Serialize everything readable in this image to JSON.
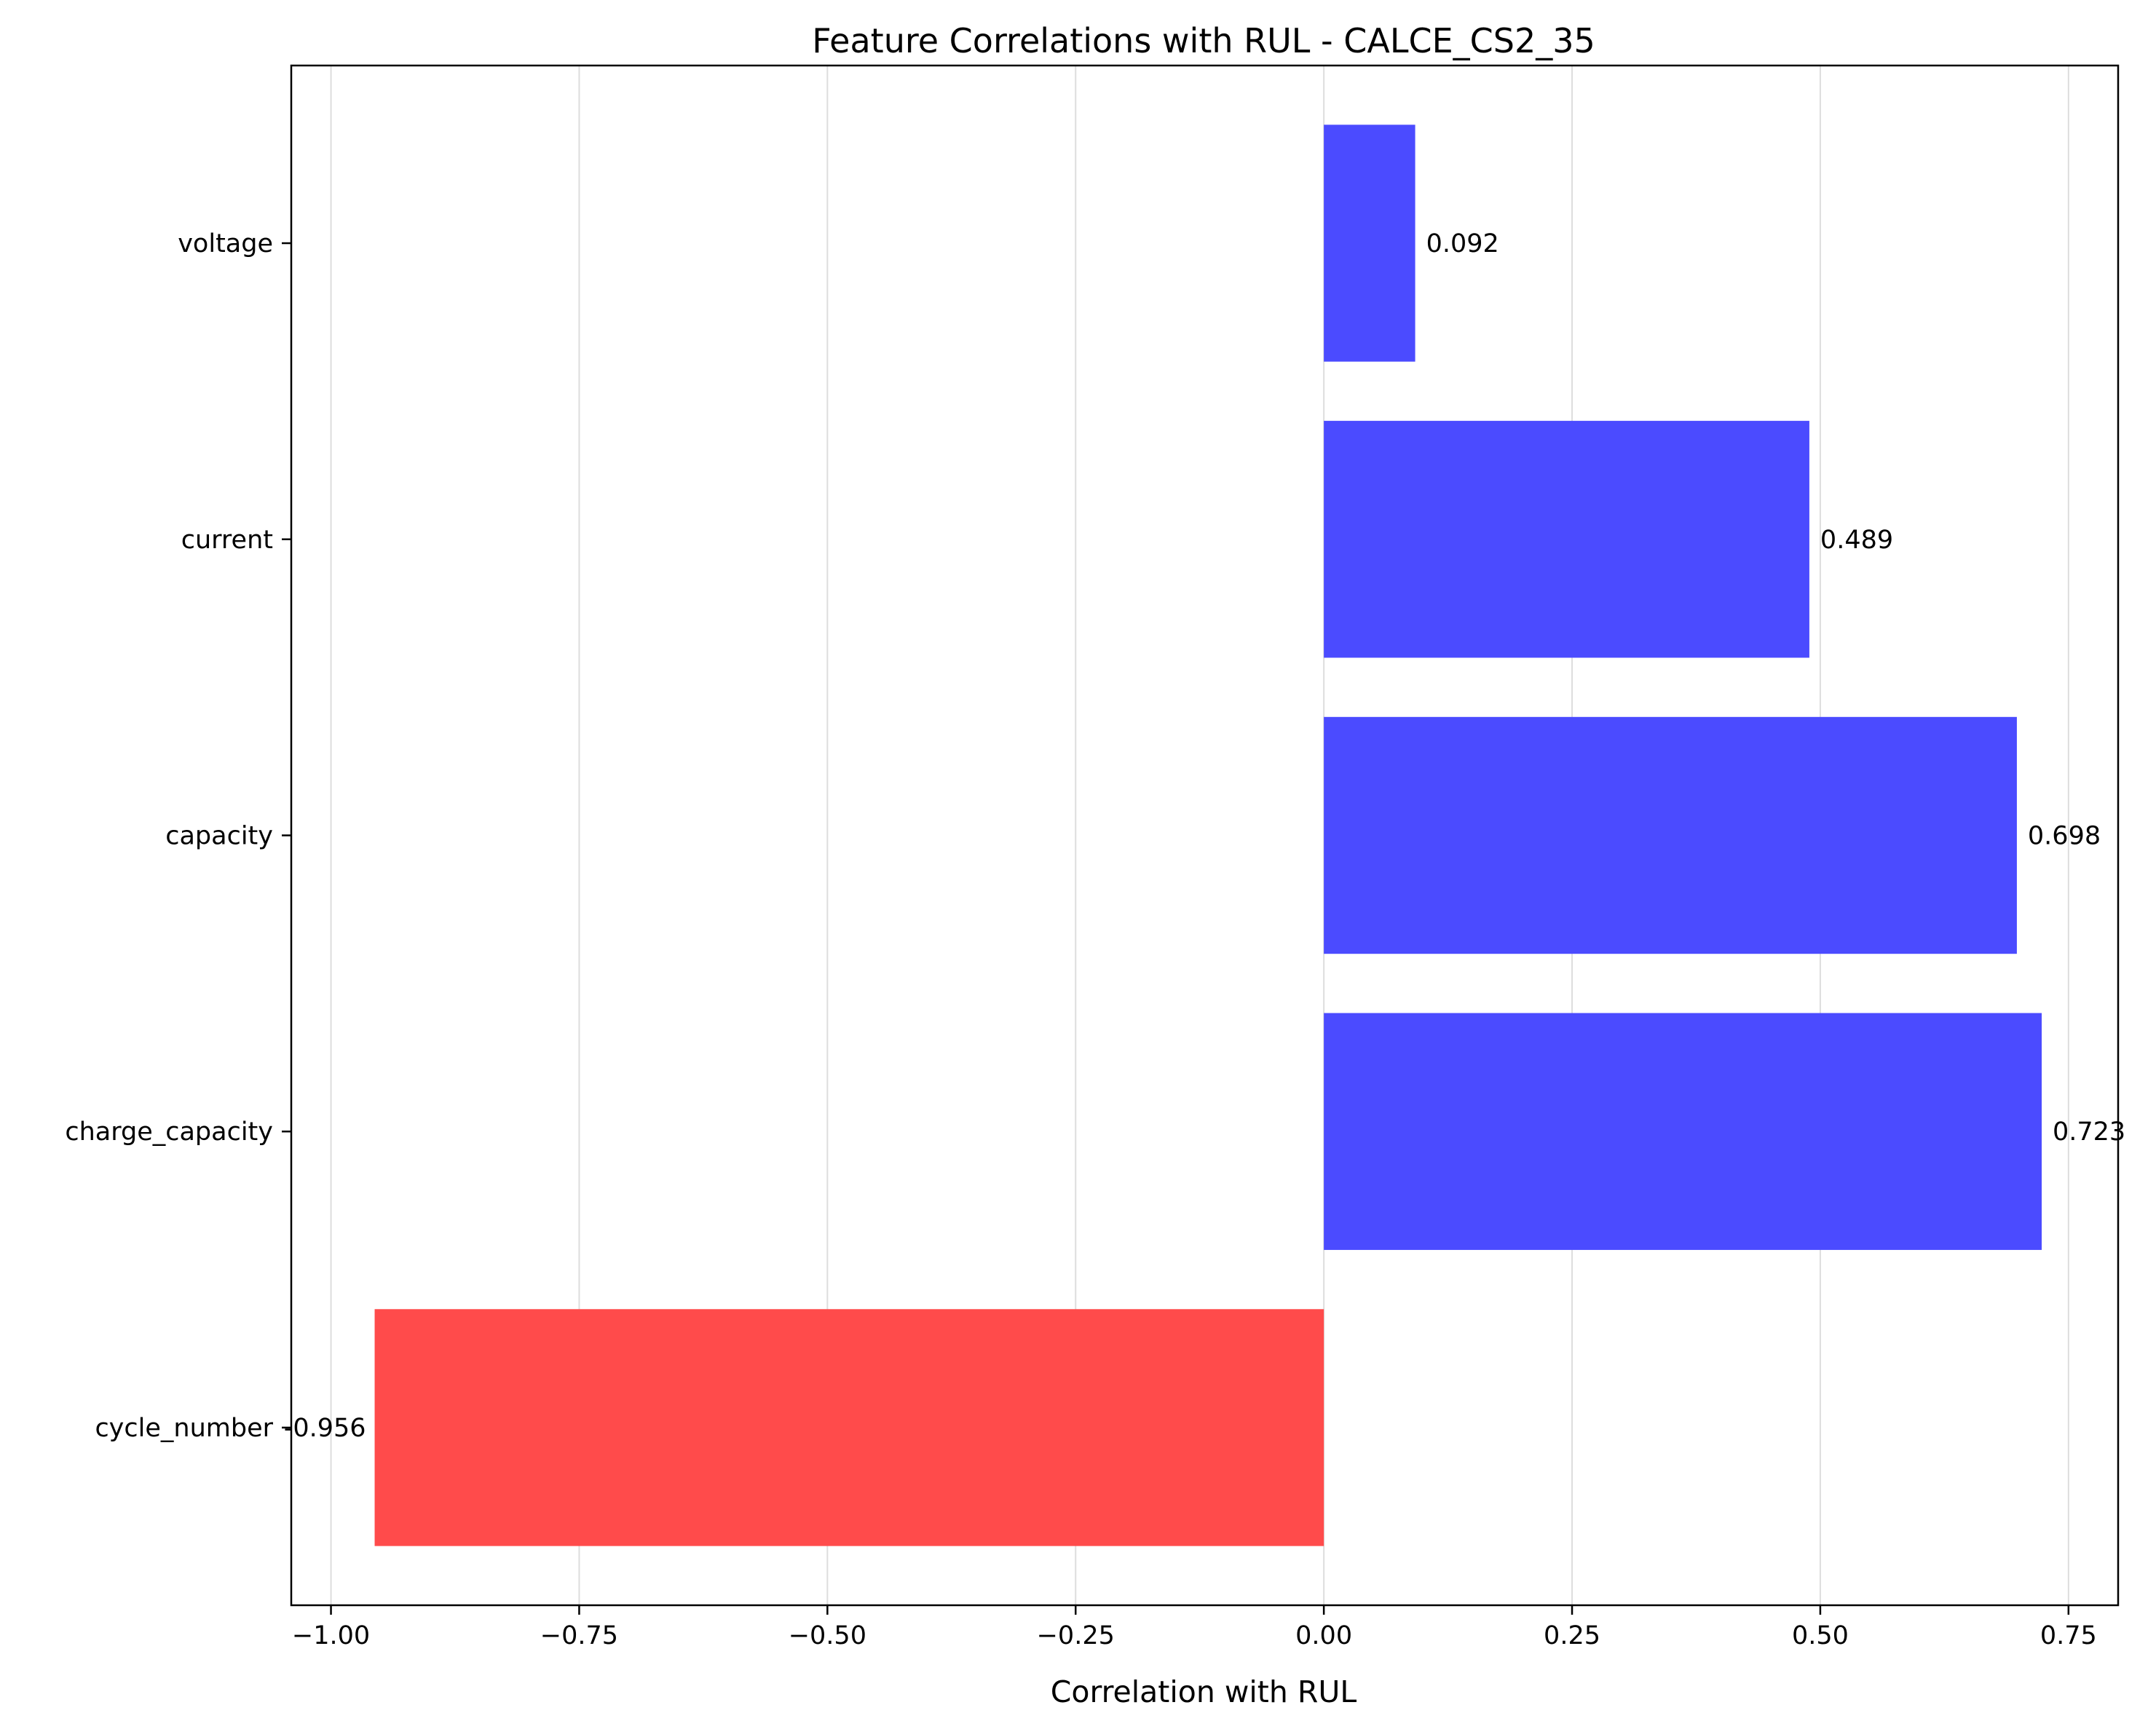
{
  "chart_data": {
    "type": "bar",
    "orientation": "horizontal",
    "title": "Feature Correlations with RUL - CALCE_CS2_35",
    "xlabel": "Correlation with RUL",
    "ylabel": "",
    "categories": [
      "cycle_number",
      "charge_capacity",
      "capacity",
      "current",
      "voltage"
    ],
    "values": [
      -0.956,
      0.723,
      0.698,
      0.489,
      0.092
    ],
    "value_labels": [
      "-0.956",
      "0.723",
      "0.698",
      "0.489",
      "0.092"
    ],
    "xlim": [
      -1.04,
      0.8
    ],
    "xticks": [
      -1.0,
      -0.75,
      -0.5,
      -0.25,
      0.0,
      0.25,
      0.5,
      0.75
    ],
    "xtick_labels": [
      "−1.00",
      "−0.75",
      "−0.50",
      "−0.25",
      "0.00",
      "0.25",
      "0.50",
      "0.75"
    ],
    "grid": "vertical",
    "legend": "none",
    "colors": {
      "positive": "#4b4bff",
      "negative": "#ff4b4b",
      "grid": "#dddddd",
      "axes": "#000000"
    }
  }
}
